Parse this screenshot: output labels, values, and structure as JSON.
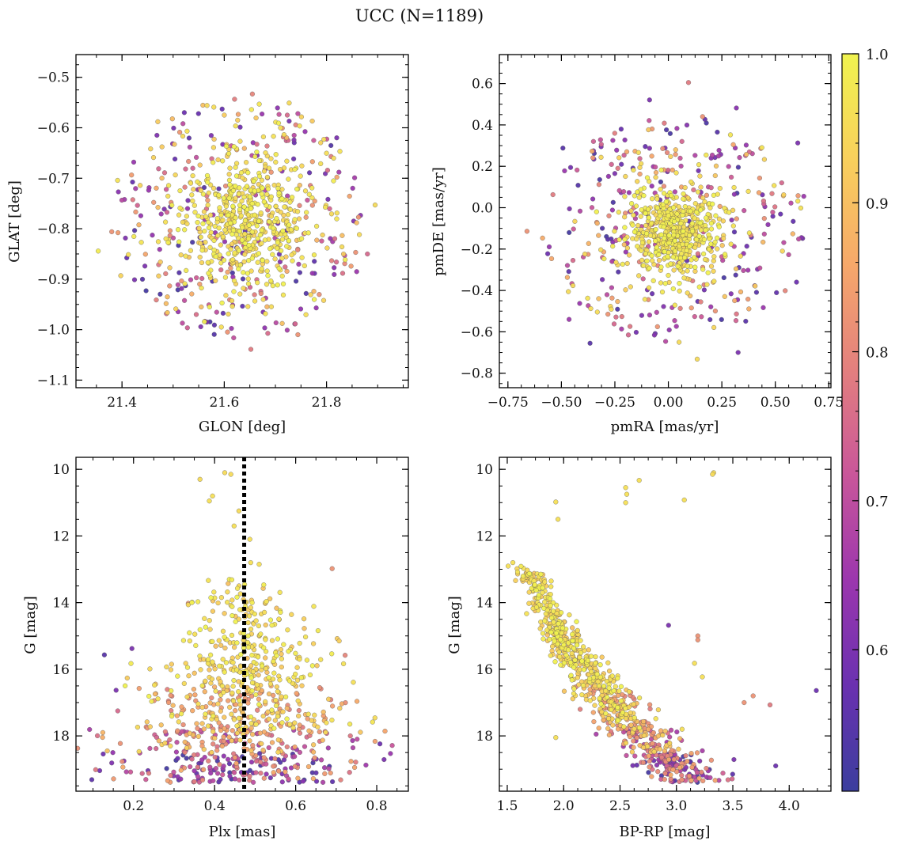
{
  "figure": {
    "title": "UCC (N=1189)"
  },
  "colorbar": {
    "colormap": "plasma",
    "range": [
      0.505,
      1.0
    ],
    "ticks": [
      0.6,
      0.7,
      0.8,
      0.9,
      1.0
    ],
    "tick_labels": [
      "0.6",
      "0.7",
      "0.8",
      "0.9",
      "1.0"
    ]
  },
  "colors": {
    "plasma_stops": [
      "#3b3e9e",
      "#6a31b0",
      "#9b36ae",
      "#c9569a",
      "#e37f7e",
      "#f6a86a",
      "#f8d05c",
      "#f0f34f"
    ],
    "point_edge": "#555555",
    "vline": "#000000"
  },
  "chart_data": [
    {
      "type": "scatter",
      "id": "glon-glat",
      "xlabel": "GLON [deg]",
      "ylabel": "GLAT [deg]",
      "xlim": [
        21.31,
        21.96
      ],
      "ylim": [
        -1.115,
        -0.455
      ],
      "xticks": [
        21.4,
        21.6,
        21.8
      ],
      "xtick_labels": [
        "21.4",
        "21.6",
        "21.8"
      ],
      "yticks": [
        -1.1,
        -1.0,
        -0.9,
        -0.8,
        -0.7,
        -0.6,
        -0.5
      ],
      "ytick_labels": [
        "−1.1",
        "−1.0",
        "−0.9",
        "−0.8",
        "−0.7",
        "−0.6",
        "−0.5"
      ],
      "cluster": {
        "center": [
          21.635,
          -0.785
        ],
        "spread": [
          0.07,
          0.07
        ]
      },
      "field": {
        "center": [
          21.63,
          -0.78
        ],
        "radius": [
          0.24,
          0.24
        ]
      },
      "points": [
        [
          21.655,
          -0.533,
          0.8
        ],
        [
          21.727,
          -0.551,
          0.95
        ],
        [
          21.652,
          -1.039,
          0.78
        ],
        [
          21.38,
          -0.806,
          0.82
        ],
        [
          21.895,
          -0.753,
          0.95
        ],
        [
          21.566,
          -0.985,
          0.6
        ],
        [
          21.47,
          -0.588,
          0.92
        ],
        [
          21.744,
          -1.01,
          0.82
        ],
        [
          21.88,
          -0.85,
          0.75
        ],
        [
          21.393,
          -0.727,
          0.62
        ],
        [
          21.859,
          -0.885,
          0.65
        ],
        [
          21.555,
          -0.955,
          0.9
        ],
        [
          21.71,
          -0.6,
          0.96
        ],
        [
          21.6,
          -0.575,
          0.92
        ],
        [
          21.82,
          -0.62,
          0.6
        ],
        [
          21.44,
          -0.9,
          0.55
        ]
      ]
    },
    {
      "type": "scatter",
      "id": "pmra-pmde",
      "xlabel": "pmRA [mas/yr]",
      "ylabel": "pmDE [mas/yr]",
      "xlim": [
        -0.79,
        0.76
      ],
      "ylim": [
        -0.87,
        0.74
      ],
      "xticks": [
        -0.75,
        -0.5,
        -0.25,
        0.0,
        0.25,
        0.5,
        0.75
      ],
      "xtick_labels": [
        "−0.75",
        "−0.50",
        "−0.25",
        "0.00",
        "0.25",
        "0.50",
        "0.75"
      ],
      "yticks": [
        -0.8,
        -0.6,
        -0.4,
        -0.2,
        0.0,
        0.2,
        0.4,
        0.6
      ],
      "ytick_labels": [
        "−0.8",
        "−0.6",
        "−0.4",
        "−0.2",
        "0.0",
        "0.2",
        "0.4",
        "0.6"
      ],
      "cluster": {
        "center": [
          0.03,
          -0.12
        ],
        "spread": [
          0.11,
          0.11
        ]
      },
      "field": {
        "center": [
          0.02,
          -0.1
        ],
        "radius": [
          0.62,
          0.55
        ]
      },
      "points": [
        [
          0.094,
          0.605,
          0.78
        ],
        [
          -0.088,
          0.521,
          0.6
        ],
        [
          0.318,
          0.482,
          0.62
        ],
        [
          0.633,
          0.055,
          0.65
        ],
        [
          0.605,
          0.313,
          0.6
        ],
        [
          -0.493,
          0.288,
          0.55
        ],
        [
          -0.661,
          -0.114,
          0.82
        ],
        [
          -0.366,
          -0.655,
          0.55
        ],
        [
          0.135,
          -0.732,
          0.95
        ],
        [
          0.326,
          -0.7,
          0.6
        ],
        [
          0.599,
          -0.36,
          0.58
        ],
        [
          0.546,
          -0.401,
          0.8
        ],
        [
          0.53,
          0.12,
          0.75
        ],
        [
          -0.464,
          -0.54,
          0.65
        ],
        [
          0.16,
          0.44,
          0.82
        ],
        [
          0.05,
          -0.65,
          0.95
        ]
      ]
    },
    {
      "type": "scatter",
      "id": "plx-g",
      "xlabel": "Plx [mas]",
      "ylabel": "G [mag]",
      "xlim": [
        0.058,
        0.878
      ],
      "ylim": [
        19.66,
        9.64
      ],
      "xticks": [
        0.2,
        0.4,
        0.6,
        0.8
      ],
      "xtick_labels": [
        "0.2",
        "0.4",
        "0.6",
        "0.8"
      ],
      "yticks": [
        10,
        12,
        14,
        16,
        18
      ],
      "ytick_labels": [
        "10",
        "12",
        "14",
        "16",
        "18"
      ],
      "vline": {
        "x": 0.473,
        "style": "dotted"
      },
      "points": [
        [
          0.364,
          10.3,
          0.95
        ],
        [
          0.425,
          10.1,
          0.95
        ],
        [
          0.44,
          10.15,
          0.95
        ],
        [
          0.395,
          10.8,
          0.96
        ],
        [
          0.387,
          10.95,
          0.96
        ],
        [
          0.448,
          11.7,
          0.96
        ],
        [
          0.46,
          11.25,
          0.95
        ],
        [
          0.487,
          12.1,
          0.96
        ],
        [
          0.489,
          12.8,
          0.96
        ],
        [
          0.51,
          12.85,
          0.96
        ],
        [
          0.69,
          12.98,
          0.82
        ],
        [
          0.335,
          14.02,
          0.82
        ],
        [
          0.128,
          15.57,
          0.55
        ],
        [
          0.196,
          15.38,
          0.6
        ],
        [
          0.157,
          16.63,
          0.6
        ],
        [
          0.161,
          17.25,
          0.75
        ],
        [
          0.722,
          15.58,
          0.8
        ],
        [
          0.808,
          18.24,
          0.58
        ],
        [
          0.818,
          18.71,
          0.6
        ],
        [
          0.58,
          14.82,
          0.96
        ]
      ]
    },
    {
      "type": "scatter",
      "id": "bprp-g",
      "xlabel": "BP-RP [mag]",
      "ylabel": "G [mag]",
      "xlim": [
        1.43,
        4.37
      ],
      "ylim": [
        19.66,
        9.64
      ],
      "xticks": [
        1.5,
        2.0,
        2.5,
        3.0,
        3.5,
        4.0
      ],
      "xtick_labels": [
        "1.5",
        "2.0",
        "2.5",
        "3.0",
        "3.5",
        "4.0"
      ],
      "yticks": [
        10,
        12,
        14,
        16,
        18
      ],
      "ytick_labels": [
        "10",
        "12",
        "14",
        "16",
        "18"
      ],
      "points": [
        [
          3.33,
          10.1,
          0.95
        ],
        [
          3.32,
          10.15,
          0.95
        ],
        [
          2.67,
          10.33,
          0.96
        ],
        [
          2.55,
          10.55,
          0.96
        ],
        [
          2.56,
          10.75,
          0.96
        ],
        [
          2.55,
          11.0,
          0.96
        ],
        [
          3.07,
          10.92,
          0.96
        ],
        [
          1.93,
          10.98,
          0.96
        ],
        [
          1.95,
          11.5,
          0.96
        ],
        [
          1.55,
          12.8,
          0.96
        ],
        [
          2.93,
          14.68,
          0.6
        ],
        [
          3.19,
          15.0,
          0.82
        ],
        [
          3.19,
          15.12,
          0.82
        ],
        [
          3.16,
          15.82,
          0.96
        ],
        [
          3.23,
          16.23,
          0.96
        ],
        [
          4.24,
          16.64,
          0.58
        ],
        [
          3.6,
          17.0,
          0.82
        ],
        [
          3.68,
          16.8,
          0.82
        ],
        [
          3.83,
          17.07,
          0.78
        ],
        [
          3.51,
          18.71,
          0.6
        ],
        [
          3.88,
          18.9,
          0.58
        ],
        [
          3.05,
          17.8,
          0.96
        ],
        [
          1.93,
          18.05,
          0.96
        ],
        [
          2.48,
          16.2,
          0.96
        ]
      ]
    }
  ]
}
